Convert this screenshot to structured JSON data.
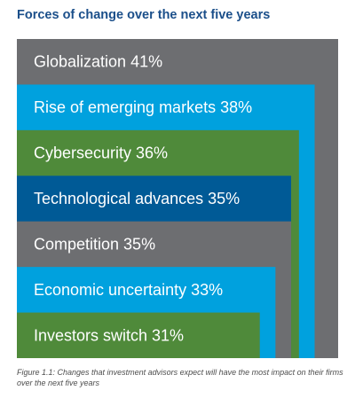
{
  "chart_data": {
    "type": "bar",
    "title": "Forces of change over the next five years",
    "categories": [
      "Globalization",
      "Rise of emerging markets",
      "Cybersecurity",
      "Technological advances",
      "Competition",
      "Economic uncertainty",
      "Investors switch"
    ],
    "values": [
      41,
      38,
      36,
      35,
      35,
      33,
      31
    ],
    "value_suffix": "%",
    "colors": [
      "#6d6e71",
      "#00a1de",
      "#4f8a3a",
      "#005a96",
      "#6d6e71",
      "#00a1de",
      "#4f8a3a"
    ],
    "label_color": "#ffffff",
    "legend": "none",
    "grid": false
  },
  "caption": "Figure 1.1: Changes that investment advisors expect will have the most impact on their firms over the next five years"
}
